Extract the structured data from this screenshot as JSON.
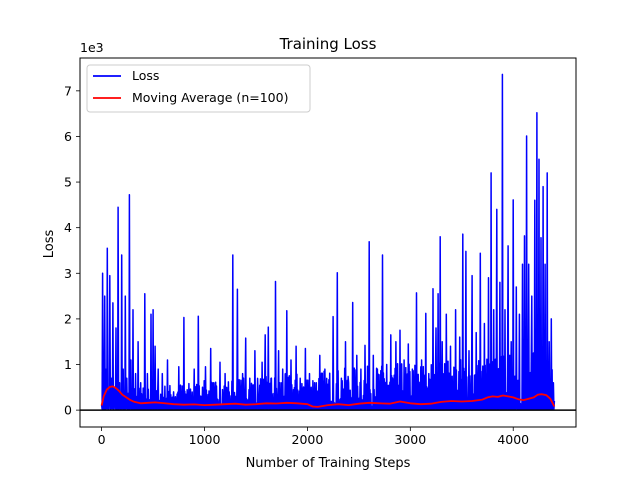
{
  "chart_data": {
    "type": "line",
    "title": "Training Loss",
    "xlabel": "Number of Training Steps",
    "ylabel": "Loss",
    "y_offset_text": "1e3",
    "xlim": [
      -210,
      4610
    ],
    "ylim": [
      -370,
      7720
    ],
    "x_ticks": [
      0,
      1000,
      2000,
      3000,
      4000
    ],
    "y_ticks": [
      0,
      1000,
      2000,
      3000,
      4000,
      5000,
      6000,
      7000
    ],
    "y_tick_labels": [
      "0",
      "1",
      "2",
      "3",
      "4",
      "5",
      "6",
      "7"
    ],
    "hline": 0,
    "legend": {
      "position": "upper-left"
    },
    "series": [
      {
        "name": "Loss",
        "color": "#0000ff",
        "baseline": 80,
        "points": [
          [
            0,
            120
          ],
          [
            10,
            3000
          ],
          [
            20,
            300
          ],
          [
            30,
            2500
          ],
          [
            40,
            900
          ],
          [
            55,
            3550
          ],
          [
            65,
            400
          ],
          [
            80,
            2950
          ],
          [
            95,
            700
          ],
          [
            110,
            2350
          ],
          [
            125,
            500
          ],
          [
            140,
            1800
          ],
          [
            160,
            4450
          ],
          [
            175,
            600
          ],
          [
            195,
            3400
          ],
          [
            210,
            900
          ],
          [
            230,
            2500
          ],
          [
            245,
            700
          ],
          [
            270,
            4720
          ],
          [
            285,
            1100
          ],
          [
            305,
            2200
          ],
          [
            330,
            800
          ],
          [
            355,
            1500
          ],
          [
            380,
            600
          ],
          [
            420,
            2550
          ],
          [
            445,
            800
          ],
          [
            480,
            2100
          ],
          [
            500,
            2200
          ],
          [
            520,
            1400
          ],
          [
            550,
            900
          ],
          [
            590,
            800
          ],
          [
            640,
            1100
          ],
          [
            700,
            400
          ],
          [
            750,
            950
          ],
          [
            800,
            2030
          ],
          [
            840,
            300
          ],
          [
            900,
            900
          ],
          [
            940,
            2060
          ],
          [
            980,
            500
          ],
          [
            1010,
            950
          ],
          [
            1060,
            1350
          ],
          [
            1100,
            500
          ],
          [
            1150,
            1050
          ],
          [
            1200,
            800
          ],
          [
            1240,
            400
          ],
          [
            1275,
            3400
          ],
          [
            1300,
            300
          ],
          [
            1320,
            2650
          ],
          [
            1370,
            800
          ],
          [
            1400,
            1580
          ],
          [
            1440,
            700
          ],
          [
            1490,
            1300
          ],
          [
            1520,
            400
          ],
          [
            1560,
            1050
          ],
          [
            1590,
            1650
          ],
          [
            1620,
            1820
          ],
          [
            1650,
            700
          ],
          [
            1690,
            2820
          ],
          [
            1720,
            1300
          ],
          [
            1760,
            900
          ],
          [
            1800,
            2180
          ],
          [
            1840,
            1100
          ],
          [
            1890,
            1400
          ],
          [
            1930,
            700
          ],
          [
            1980,
            1350
          ],
          [
            2020,
            800
          ],
          [
            2070,
            600
          ],
          [
            2120,
            1200
          ],
          [
            2170,
            900
          ],
          [
            2200,
            300
          ],
          [
            2250,
            2050
          ],
          [
            2290,
            3010
          ],
          [
            2330,
            700
          ],
          [
            2370,
            1500
          ],
          [
            2400,
            600
          ],
          [
            2440,
            2360
          ],
          [
            2480,
            1200
          ],
          [
            2520,
            900
          ],
          [
            2560,
            1420
          ],
          [
            2600,
            3690
          ],
          [
            2640,
            1200
          ],
          [
            2680,
            900
          ],
          [
            2730,
            3400
          ],
          [
            2770,
            1000
          ],
          [
            2810,
            1650
          ],
          [
            2860,
            1500
          ],
          [
            2900,
            1750
          ],
          [
            2940,
            1100
          ],
          [
            2980,
            1450
          ],
          [
            3020,
            900
          ],
          [
            3060,
            2570
          ],
          [
            3110,
            1100
          ],
          [
            3150,
            2120
          ],
          [
            3180,
            800
          ],
          [
            3220,
            2660
          ],
          [
            3250,
            1800
          ],
          [
            3270,
            2550
          ],
          [
            3290,
            3800
          ],
          [
            3310,
            1500
          ],
          [
            3350,
            2100
          ],
          [
            3390,
            1400
          ],
          [
            3440,
            2200
          ],
          [
            3480,
            1600
          ],
          [
            3510,
            3860
          ],
          [
            3540,
            3480
          ],
          [
            3570,
            1300
          ],
          [
            3600,
            2950
          ],
          [
            3640,
            1700
          ],
          [
            3680,
            3440
          ],
          [
            3720,
            1900
          ],
          [
            3760,
            2900
          ],
          [
            3785,
            5200
          ],
          [
            3810,
            2200
          ],
          [
            3840,
            4400
          ],
          [
            3870,
            2800
          ],
          [
            3895,
            7360
          ],
          [
            3920,
            2200
          ],
          [
            3950,
            3600
          ],
          [
            3980,
            1500
          ],
          [
            4000,
            4610
          ],
          [
            4030,
            2700
          ],
          [
            4060,
            2100
          ],
          [
            4090,
            3200
          ],
          [
            4110,
            3820
          ],
          [
            4130,
            6010
          ],
          [
            4150,
            3200
          ],
          [
            4180,
            2500
          ],
          [
            4210,
            4600
          ],
          [
            4230,
            6520
          ],
          [
            4250,
            5500
          ],
          [
            4270,
            3780
          ],
          [
            4290,
            4900
          ],
          [
            4310,
            3200
          ],
          [
            4330,
            5200
          ],
          [
            4350,
            1500
          ],
          [
            4370,
            2000
          ],
          [
            4390,
            600
          ],
          [
            4400,
            200
          ]
        ]
      },
      {
        "name": "Moving Average (n=100)",
        "color": "#ff0000",
        "points": [
          [
            0,
            100
          ],
          [
            20,
            300
          ],
          [
            50,
            450
          ],
          [
            80,
            510
          ],
          [
            110,
            520
          ],
          [
            140,
            480
          ],
          [
            170,
            420
          ],
          [
            200,
            340
          ],
          [
            240,
            280
          ],
          [
            280,
            220
          ],
          [
            320,
            180
          ],
          [
            380,
            150
          ],
          [
            450,
            160
          ],
          [
            520,
            170
          ],
          [
            600,
            155
          ],
          [
            700,
            130
          ],
          [
            800,
            120
          ],
          [
            900,
            125
          ],
          [
            1000,
            110
          ],
          [
            1100,
            120
          ],
          [
            1200,
            130
          ],
          [
            1300,
            140
          ],
          [
            1400,
            120
          ],
          [
            1500,
            130
          ],
          [
            1600,
            150
          ],
          [
            1700,
            145
          ],
          [
            1800,
            160
          ],
          [
            1900,
            150
          ],
          [
            2000,
            130
          ],
          [
            2050,
            80
          ],
          [
            2100,
            70
          ],
          [
            2200,
            110
          ],
          [
            2300,
            130
          ],
          [
            2400,
            110
          ],
          [
            2500,
            140
          ],
          [
            2600,
            160
          ],
          [
            2700,
            150
          ],
          [
            2800,
            140
          ],
          [
            2900,
            190
          ],
          [
            3000,
            150
          ],
          [
            3100,
            130
          ],
          [
            3200,
            140
          ],
          [
            3300,
            180
          ],
          [
            3400,
            200
          ],
          [
            3500,
            190
          ],
          [
            3600,
            200
          ],
          [
            3700,
            230
          ],
          [
            3750,
            280
          ],
          [
            3800,
            300
          ],
          [
            3850,
            290
          ],
          [
            3900,
            320
          ],
          [
            3950,
            300
          ],
          [
            4000,
            280
          ],
          [
            4050,
            240
          ],
          [
            4100,
            220
          ],
          [
            4150,
            250
          ],
          [
            4200,
            280
          ],
          [
            4240,
            340
          ],
          [
            4280,
            350
          ],
          [
            4320,
            330
          ],
          [
            4360,
            250
          ],
          [
            4390,
            120
          ],
          [
            4400,
            80
          ]
        ]
      }
    ]
  }
}
